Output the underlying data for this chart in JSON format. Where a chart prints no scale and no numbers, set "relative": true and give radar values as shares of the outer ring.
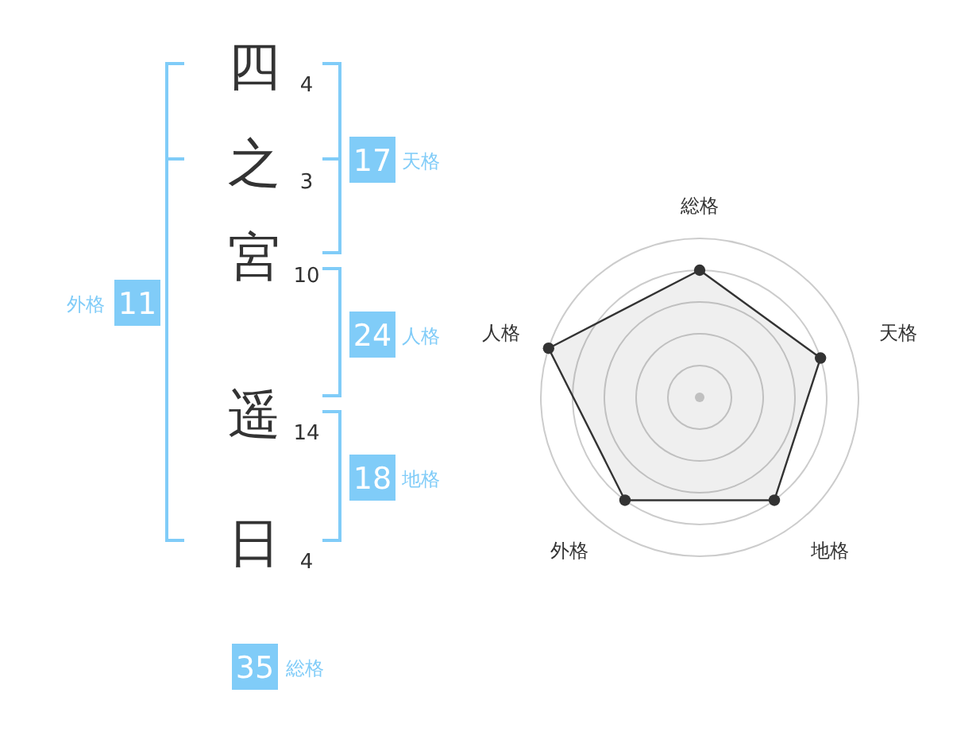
{
  "chart_data": [
    {
      "type": "other",
      "categories": [
        "四",
        "之",
        "宮",
        "遥",
        "日"
      ],
      "values": [
        4,
        3,
        10,
        14,
        4
      ],
      "data_labels": true,
      "color": "#80ccf8",
      "annotations": [
        "17",
        "天格",
        "外格",
        "11",
        "24",
        "人格",
        "18",
        "地格",
        "35",
        "総格"
      ]
    },
    {
      "type": "radar",
      "categories": [
        "総格",
        "天格",
        "地格",
        "外格",
        "人格"
      ],
      "relative": true,
      "grid": true,
      "marker": "circle",
      "series": [
        {
          "color": "#333333",
          "values": [
            0.8,
            0.8,
            0.8,
            0.8,
            1
          ]
        }
      ]
    }
  ]
}
